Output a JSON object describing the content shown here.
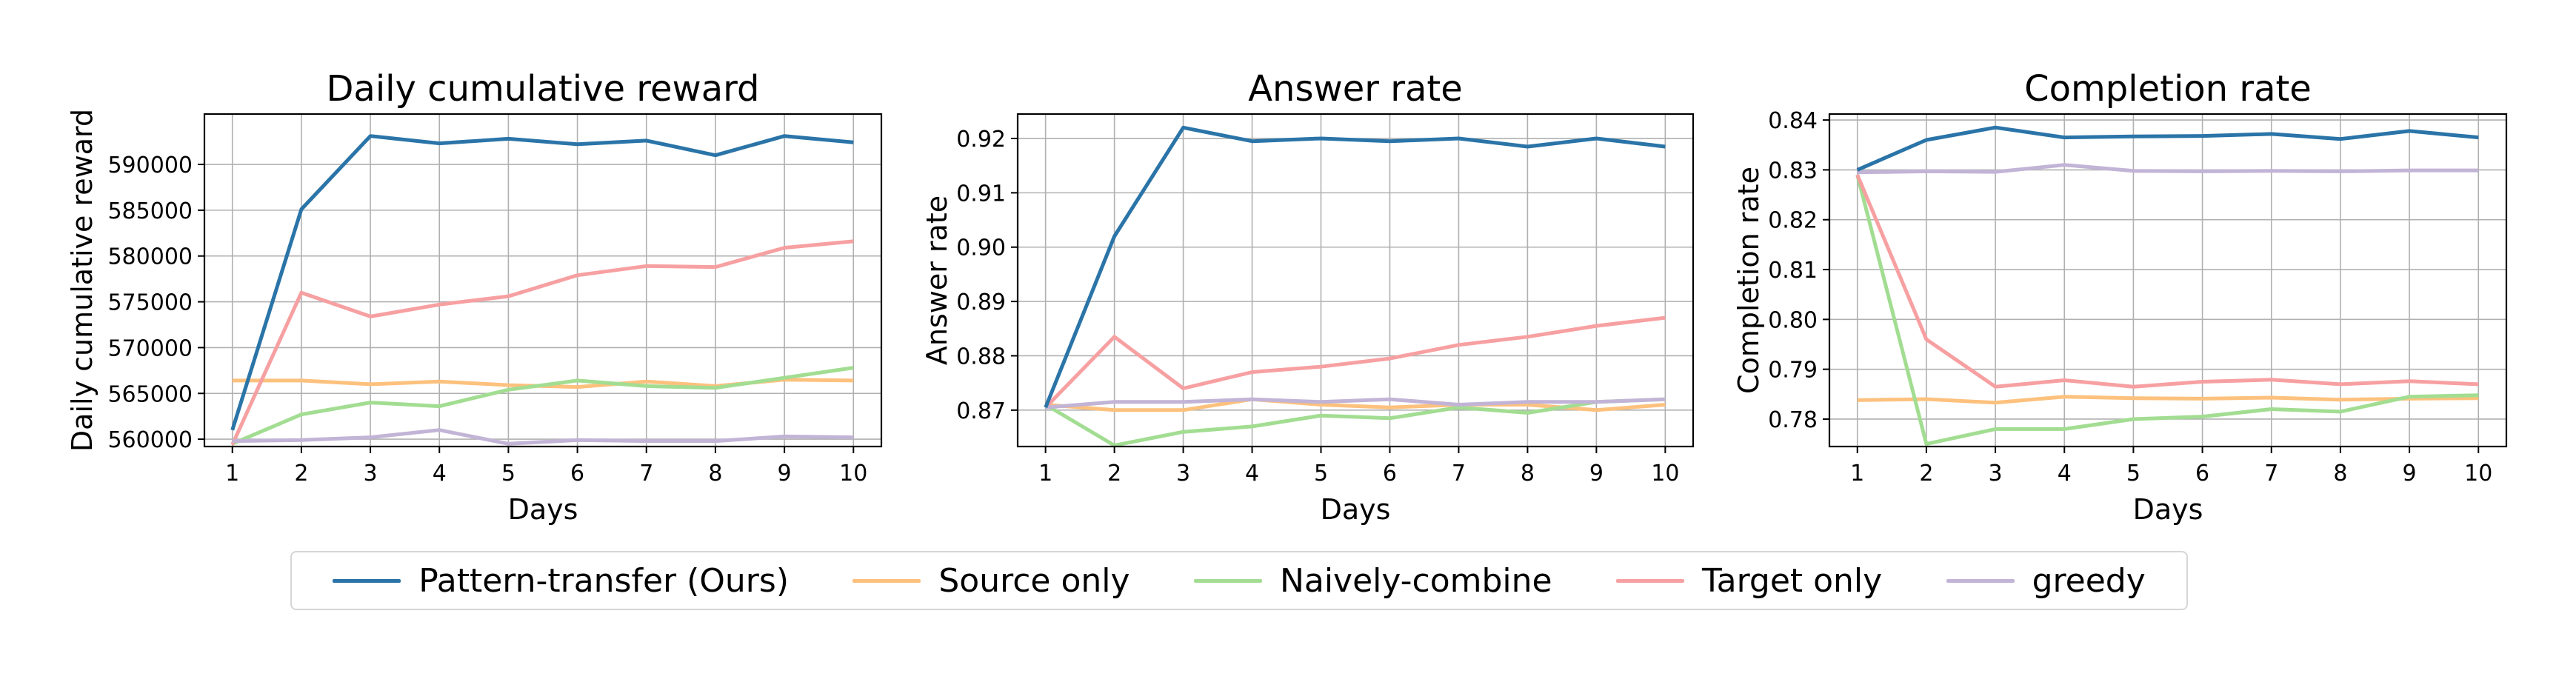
{
  "chart_data": [
    {
      "type": "line",
      "title": "Daily cumulative reward",
      "xlabel": "Days",
      "ylabel": "Daily cumulative reward",
      "x": [
        1,
        2,
        3,
        4,
        5,
        6,
        7,
        8,
        9,
        10
      ],
      "ylim": [
        559200,
        595500
      ],
      "yticks": [
        560000,
        565000,
        570000,
        575000,
        580000,
        585000,
        590000
      ],
      "grid": true,
      "series": [
        {
          "name": "Pattern-transfer (Ours)",
          "values": [
            561000,
            585100,
            593100,
            592300,
            592800,
            592200,
            592600,
            591000,
            593100,
            592400
          ]
        },
        {
          "name": "Source only",
          "values": [
            566400,
            566400,
            566000,
            566300,
            565900,
            565700,
            566300,
            565800,
            566500,
            566400
          ]
        },
        {
          "name": "Naively-combine",
          "values": [
            559500,
            562700,
            564000,
            563600,
            565400,
            566400,
            565800,
            565600,
            566700,
            567800
          ]
        },
        {
          "name": "Target only",
          "values": [
            559400,
            576000,
            573400,
            574700,
            575600,
            577900,
            578900,
            578800,
            580900,
            581600
          ]
        },
        {
          "name": "greedy",
          "values": [
            559800,
            559900,
            560200,
            561000,
            559500,
            559900,
            559800,
            559800,
            560300,
            560200
          ]
        }
      ]
    },
    {
      "type": "line",
      "title": "Answer rate",
      "xlabel": "Days",
      "ylabel": "Answer rate",
      "x": [
        1,
        2,
        3,
        4,
        5,
        6,
        7,
        8,
        9,
        10
      ],
      "ylim": [
        0.8633,
        0.9245
      ],
      "yticks": [
        0.87,
        0.88,
        0.89,
        0.9,
        0.91,
        0.92
      ],
      "grid": true,
      "series": [
        {
          "name": "Pattern-transfer (Ours)",
          "values": [
            0.8705,
            0.902,
            0.922,
            0.9195,
            0.92,
            0.9195,
            0.92,
            0.9185,
            0.92,
            0.9185
          ]
        },
        {
          "name": "Source only",
          "values": [
            0.871,
            0.87,
            0.87,
            0.872,
            0.871,
            0.8705,
            0.871,
            0.871,
            0.87,
            0.871
          ]
        },
        {
          "name": "Naively-combine",
          "values": [
            0.871,
            0.8635,
            0.866,
            0.867,
            0.869,
            0.8685,
            0.8705,
            0.8695,
            0.8715,
            0.872
          ]
        },
        {
          "name": "Target only",
          "values": [
            0.8705,
            0.8835,
            0.874,
            0.877,
            0.878,
            0.8795,
            0.882,
            0.8835,
            0.8855,
            0.887
          ]
        },
        {
          "name": "greedy",
          "values": [
            0.8705,
            0.8715,
            0.8715,
            0.872,
            0.8715,
            0.872,
            0.871,
            0.8715,
            0.8715,
            0.872
          ]
        }
      ]
    },
    {
      "type": "line",
      "title": "Completion rate",
      "xlabel": "Days",
      "ylabel": "Completion rate",
      "x": [
        1,
        2,
        3,
        4,
        5,
        6,
        7,
        8,
        9,
        10
      ],
      "ylim": [
        0.7745,
        0.8412
      ],
      "yticks": [
        0.78,
        0.79,
        0.8,
        0.81,
        0.82,
        0.83,
        0.84
      ],
      "grid": true,
      "series": [
        {
          "name": "Pattern-transfer (Ours)",
          "values": [
            0.83,
            0.836,
            0.8385,
            0.8365,
            0.8367,
            0.8368,
            0.8372,
            0.8362,
            0.8378,
            0.8365
          ]
        },
        {
          "name": "Source only",
          "values": [
            0.7838,
            0.784,
            0.7833,
            0.7845,
            0.7842,
            0.7841,
            0.7843,
            0.7839,
            0.7841,
            0.7842
          ]
        },
        {
          "name": "Naively-combine",
          "values": [
            0.829,
            0.775,
            0.778,
            0.778,
            0.78,
            0.7805,
            0.782,
            0.7815,
            0.7845,
            0.7848
          ]
        },
        {
          "name": "Target only",
          "values": [
            0.829,
            0.796,
            0.7865,
            0.7878,
            0.7865,
            0.7875,
            0.7879,
            0.787,
            0.7876,
            0.787
          ]
        },
        {
          "name": "greedy",
          "values": [
            0.8295,
            0.8297,
            0.8296,
            0.831,
            0.8298,
            0.8297,
            0.8298,
            0.8297,
            0.8299,
            0.8299
          ]
        }
      ]
    }
  ],
  "legend": {
    "placement": "bottom-center",
    "items": [
      {
        "label": "Pattern-transfer (Ours)",
        "color": "#2a74a8"
      },
      {
        "label": "Source only",
        "color": "#fdc17e"
      },
      {
        "label": "Naively-combine",
        "color": "#a2dd92"
      },
      {
        "label": "Target only",
        "color": "#f7a0a2"
      },
      {
        "label": "greedy",
        "color": "#c2b4d6"
      }
    ]
  }
}
